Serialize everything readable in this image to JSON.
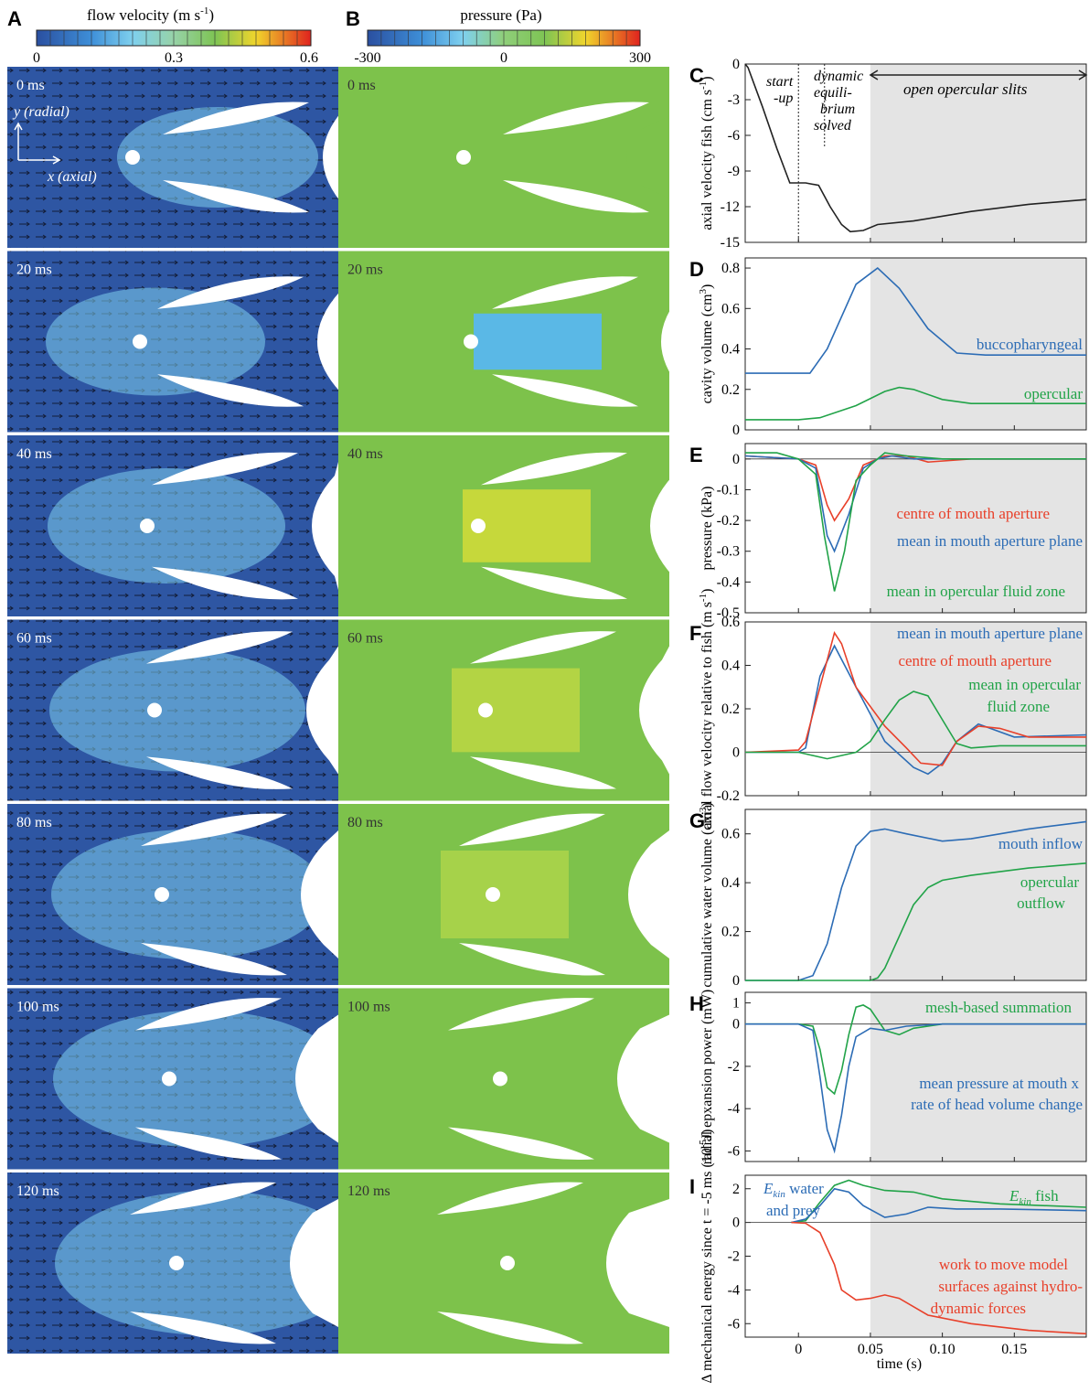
{
  "colorbars": {
    "A": {
      "label": "A",
      "title": "flow velocity (m s",
      "title_sup": "-1",
      "title_end": ")",
      "ticks": [
        "0",
        "0.3",
        "0.6"
      ]
    },
    "B": {
      "label": "B",
      "title": "pressure (Pa)",
      "ticks": [
        "-300",
        "0",
        "300"
      ]
    }
  },
  "frames": [
    "0 ms",
    "20 ms",
    "40 ms",
    "60 ms",
    "80 ms",
    "100 ms",
    "120 ms"
  ],
  "axis_labels": {
    "y_radial": "y (radial)",
    "x_axial": "x (axial)"
  },
  "colors": {
    "velocity_bg": "#2e56a3",
    "pressure_bg": "#7dc24b",
    "phase_shade": "#e4e4e4",
    "blue": "#2c6cb5",
    "green": "#21a348",
    "red": "#e8402a",
    "black": "#222222"
  },
  "chart_data": [
    {
      "panel": "C",
      "type": "line",
      "ylabel": "axial velocity fish (cm s",
      "ylabel_sup": "-1",
      "ylabel_end": ")",
      "yticks": [
        "0",
        "-3",
        "-6",
        "-9",
        "-12",
        "-15"
      ],
      "ylim": [
        -15,
        0
      ],
      "annotations": [
        "start",
        "-up",
        "dynamic",
        "equili-",
        "brium",
        "solved",
        "open opercular slits"
      ],
      "series": [
        {
          "color": "#222222",
          "x": [
            -0.037,
            -0.035,
            -0.025,
            -0.015,
            -0.006,
            0,
            0.005,
            0.014,
            0.022,
            0.03,
            0.036,
            0.045,
            0.055,
            0.08,
            0.12,
            0.16,
            0.2
          ],
          "y": [
            0,
            -0.3,
            -3.6,
            -7.1,
            -10.0,
            -10.0,
            -10.0,
            -10.2,
            -12.0,
            -13.5,
            -14.1,
            -14.0,
            -13.5,
            -13.2,
            -12.4,
            -11.8,
            -11.4
          ]
        }
      ]
    },
    {
      "panel": "D",
      "type": "line",
      "ylabel": "cavity volume (cm",
      "ylabel_sup": "3",
      "ylabel_end": ")",
      "yticks": [
        "0",
        "0.2",
        "0.4",
        "0.6",
        "0.8"
      ],
      "ylim": [
        0,
        0.85
      ],
      "series": [
        {
          "name": "buccopharyngeal",
          "color": "#2c6cb5",
          "x": [
            -0.037,
            0,
            0.008,
            0.02,
            0.04,
            0.055,
            0.07,
            0.09,
            0.11,
            0.13,
            0.2
          ],
          "y": [
            0.28,
            0.28,
            0.28,
            0.4,
            0.72,
            0.8,
            0.7,
            0.5,
            0.38,
            0.37,
            0.37
          ]
        },
        {
          "name": "opercular",
          "color": "#21a348",
          "x": [
            -0.037,
            0,
            0.015,
            0.04,
            0.06,
            0.07,
            0.08,
            0.1,
            0.12,
            0.2
          ],
          "y": [
            0.05,
            0.05,
            0.06,
            0.12,
            0.19,
            0.21,
            0.2,
            0.15,
            0.13,
            0.13
          ]
        }
      ]
    },
    {
      "panel": "E",
      "type": "line",
      "ylabel": "pressure (kPa)",
      "yticks": [
        "0",
        "-0.1",
        "-0.2",
        "-0.3",
        "-0.4",
        "-0.5"
      ],
      "ylim": [
        -0.5,
        0.05
      ],
      "series": [
        {
          "name": "centre of mouth aperture",
          "color": "#e8402a",
          "x": [
            -0.037,
            0,
            0.012,
            0.02,
            0.025,
            0.035,
            0.045,
            0.055,
            0.06,
            0.075,
            0.09,
            0.12,
            0.2
          ],
          "y": [
            0.01,
            0.0,
            -0.02,
            -0.15,
            -0.2,
            -0.13,
            -0.02,
            0.0,
            0.01,
            0.01,
            -0.01,
            0.0,
            0.0
          ]
        },
        {
          "name": "mean in mouth aperture plane",
          "color": "#2c6cb5",
          "x": [
            -0.037,
            0,
            0.012,
            0.02,
            0.025,
            0.035,
            0.045,
            0.055,
            0.065,
            0.08,
            0.1,
            0.2
          ],
          "y": [
            0.01,
            0.0,
            -0.03,
            -0.25,
            -0.3,
            -0.18,
            -0.03,
            0.0,
            0.01,
            0.0,
            0.0,
            0.0
          ]
        },
        {
          "name": "mean in opercular fluid zone",
          "color": "#21a348",
          "x": [
            -0.037,
            -0.015,
            0,
            0.012,
            0.018,
            0.025,
            0.032,
            0.04,
            0.05,
            0.06,
            0.075,
            0.1,
            0.2
          ],
          "y": [
            0.02,
            0.02,
            0.0,
            -0.05,
            -0.25,
            -0.43,
            -0.3,
            -0.07,
            -0.02,
            0.02,
            0.01,
            0.0,
            0.0
          ]
        }
      ]
    },
    {
      "panel": "F",
      "type": "line",
      "ylabel": "axial flow velocity relative to fish (m s",
      "ylabel_sup": "-1",
      "ylabel_end": ")",
      "yticks": [
        "0.6",
        "0.4",
        "0.2",
        "0",
        "-0.2"
      ],
      "ylim": [
        -0.2,
        0.6
      ],
      "series": [
        {
          "name": "mean in mouth aperture plane",
          "color": "#2c6cb5",
          "x": [
            -0.037,
            0,
            0.005,
            0.015,
            0.025,
            0.04,
            0.06,
            0.08,
            0.09,
            0.1,
            0.11,
            0.125,
            0.15,
            0.2
          ],
          "y": [
            0,
            0,
            0.02,
            0.35,
            0.49,
            0.3,
            0.05,
            -0.07,
            -0.1,
            -0.05,
            0.05,
            0.13,
            0.07,
            0.08
          ]
        },
        {
          "name": "centre of mouth aperture",
          "color": "#e8402a",
          "x": [
            -0.037,
            0,
            0.005,
            0.015,
            0.025,
            0.03,
            0.04,
            0.06,
            0.075,
            0.085,
            0.1,
            0.11,
            0.125,
            0.14,
            0.16,
            0.2
          ],
          "y": [
            0,
            0.01,
            0.05,
            0.3,
            0.55,
            0.5,
            0.3,
            0.12,
            0.02,
            -0.05,
            -0.06,
            0.05,
            0.12,
            0.11,
            0.07,
            0.07
          ]
        },
        {
          "name": "mean in opercular fluid zone",
          "color": "#21a348",
          "x": [
            -0.037,
            0,
            0.02,
            0.04,
            0.05,
            0.06,
            0.07,
            0.08,
            0.09,
            0.1,
            0.11,
            0.12,
            0.14,
            0.2
          ],
          "y": [
            0,
            0,
            -0.03,
            0,
            0.05,
            0.15,
            0.24,
            0.28,
            0.26,
            0.15,
            0.04,
            0.02,
            0.03,
            0.03
          ]
        }
      ],
      "legend_lines": [
        "mean in opercular",
        "fluid zone"
      ]
    },
    {
      "panel": "G",
      "type": "line",
      "ylabel": "cumulative water volume (cm",
      "ylabel_sup": "3",
      "ylabel_end": ")",
      "yticks": [
        "0",
        "0.2",
        "0.4",
        "0.6"
      ],
      "ylim": [
        0,
        0.7
      ],
      "series": [
        {
          "name": "mouth inflow",
          "color": "#2c6cb5",
          "x": [
            -0.037,
            0,
            0.01,
            0.02,
            0.03,
            0.04,
            0.05,
            0.06,
            0.075,
            0.1,
            0.12,
            0.16,
            0.2
          ],
          "y": [
            0,
            0,
            0.02,
            0.15,
            0.38,
            0.55,
            0.61,
            0.62,
            0.6,
            0.57,
            0.58,
            0.62,
            0.65
          ]
        },
        {
          "name": "opercular outflow",
          "color": "#21a348",
          "x": [
            -0.037,
            0,
            0.04,
            0.05,
            0.055,
            0.06,
            0.07,
            0.08,
            0.09,
            0.1,
            0.12,
            0.16,
            0.2
          ],
          "y": [
            0,
            0,
            0,
            0,
            0.01,
            0.05,
            0.18,
            0.31,
            0.38,
            0.41,
            0.43,
            0.46,
            0.48
          ]
        }
      ],
      "legend_lines": [
        "opercular",
        "outflow"
      ]
    },
    {
      "panel": "H",
      "type": "line",
      "ylabel": "radial epxansion power (mW)",
      "yticks": [
        "1",
        "0",
        "-2",
        "-4",
        "-6"
      ],
      "ylim": [
        -6.5,
        1.5
      ],
      "series": [
        {
          "name": "mesh-based summation",
          "color": "#21a348",
          "x": [
            -0.037,
            0,
            0.01,
            0.015,
            0.02,
            0.025,
            0.03,
            0.035,
            0.04,
            0.045,
            0.05,
            0.055,
            0.06,
            0.07,
            0.08,
            0.1,
            0.2
          ],
          "y": [
            0,
            0,
            -0.1,
            -1.2,
            -3.0,
            -3.3,
            -2.2,
            -0.5,
            0.8,
            0.9,
            0.7,
            0.2,
            -0.3,
            -0.5,
            -0.2,
            0,
            0
          ]
        },
        {
          "name": "mean pressure at mouth x rate of head volume change",
          "color": "#2c6cb5",
          "x": [
            -0.037,
            0,
            0.01,
            0.015,
            0.02,
            0.025,
            0.03,
            0.035,
            0.04,
            0.05,
            0.06,
            0.075,
            0.1,
            0.2
          ],
          "y": [
            0,
            0,
            -0.3,
            -2.5,
            -5.0,
            -6.0,
            -4.3,
            -2.0,
            -0.6,
            -0.2,
            -0.3,
            -0.1,
            0,
            0
          ]
        }
      ],
      "legend_lines": [
        "mean pressure at mouth x",
        "rate of head volume change"
      ]
    },
    {
      "panel": "I",
      "type": "line",
      "ylabel": "Δ mechanical energy since t = -5 ms (10",
      "ylabel_sup": "-5",
      "ylabel_end": "J)",
      "yticks": [
        "2",
        "0",
        "-2",
        "-4",
        "-6"
      ],
      "ylim": [
        -6.8,
        2.8
      ],
      "xticks": [
        "0",
        "0.05",
        "0.10",
        "0.15"
      ],
      "xlabel": "time (s)",
      "xlim": [
        -0.037,
        0.2
      ],
      "series": [
        {
          "name": "E_kin fish",
          "color": "#21a348",
          "x": [
            -0.005,
            0.005,
            0.015,
            0.025,
            0.035,
            0.045,
            0.06,
            0.08,
            0.1,
            0.14,
            0.2
          ],
          "y": [
            0,
            0.1,
            1.2,
            2.2,
            2.5,
            2.2,
            1.9,
            1.8,
            1.4,
            1.1,
            0.9
          ]
        },
        {
          "name": "E_kin water and prey",
          "color": "#2c6cb5",
          "x": [
            -0.005,
            0.005,
            0.015,
            0.025,
            0.035,
            0.045,
            0.06,
            0.075,
            0.09,
            0.11,
            0.14,
            0.2
          ],
          "y": [
            0,
            0.2,
            1.0,
            2.0,
            1.8,
            1.0,
            0.3,
            0.5,
            0.9,
            0.8,
            0.8,
            0.7
          ]
        },
        {
          "name": "work to move model surfaces against hydrodynamic forces",
          "color": "#e8402a",
          "x": [
            -0.005,
            0.005,
            0.015,
            0.025,
            0.03,
            0.04,
            0.05,
            0.06,
            0.07,
            0.09,
            0.12,
            0.16,
            0.2
          ],
          "y": [
            0,
            -0.05,
            -0.6,
            -2.5,
            -4.0,
            -4.6,
            -4.5,
            -4.3,
            -4.5,
            -5.5,
            -6.0,
            -6.4,
            -6.6
          ]
        }
      ],
      "legend_lines": [
        "E",
        "kin",
        " water",
        "and prey",
        "E",
        "kin",
        " fish",
        "work to move model",
        "surfaces against hydro-",
        "dynamic forces"
      ]
    }
  ]
}
